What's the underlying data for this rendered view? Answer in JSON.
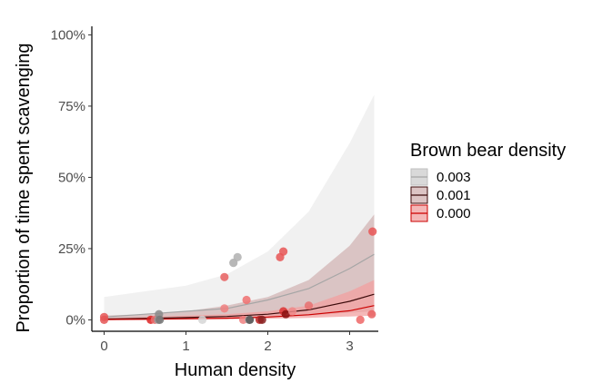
{
  "chart_data": {
    "type": "line",
    "title": "",
    "xlabel": "Human density",
    "ylabel": "Proportion of time spent scavenging",
    "xlim": [
      -0.15,
      3.35
    ],
    "ylim": [
      -0.04,
      1.03
    ],
    "x_ticks": [
      0,
      1,
      2,
      3
    ],
    "x_tick_labels": [
      "0",
      "1",
      "2",
      "3"
    ],
    "y_ticks": [
      0,
      0.25,
      0.5,
      0.75,
      1.0
    ],
    "y_tick_labels": [
      "0%",
      "25%",
      "50%",
      "75%",
      "100%"
    ],
    "grid": false,
    "legend": {
      "title": "Brown bear density",
      "placement": "right",
      "entries": [
        {
          "label": "0.003",
          "fill": "#d9d9d9",
          "line": "#a6a6a6",
          "border": "#bfbfbf"
        },
        {
          "label": "0.001",
          "fill": "#dcc4c4",
          "line": "#3b0a0a",
          "border": "#3b0a0a"
        },
        {
          "label": "0.000",
          "fill": "#f4b7b7",
          "line": "#cc0000",
          "border": "#cc0000"
        }
      ]
    },
    "series": [
      {
        "name": "0.003",
        "color": "#a6a6a6",
        "ribbon_color": "#ececec",
        "x": [
          0,
          0.5,
          1.0,
          1.5,
          2.0,
          2.5,
          3.0,
          3.3
        ],
        "fit": [
          0.01,
          0.02,
          0.03,
          0.04,
          0.07,
          0.11,
          0.18,
          0.23
        ],
        "lower": [
          0.0,
          0.0,
          0.01,
          0.01,
          0.02,
          0.04,
          0.07,
          0.09
        ],
        "upper": [
          0.08,
          0.1,
          0.12,
          0.16,
          0.24,
          0.38,
          0.62,
          0.79
        ]
      },
      {
        "name": "0.001",
        "color": "#3b0a0a",
        "ribbon_color": "#d2b4b4",
        "x": [
          0,
          0.5,
          1.0,
          1.5,
          2.0,
          2.5,
          3.0,
          3.3
        ],
        "fit": [
          0.003,
          0.005,
          0.008,
          0.012,
          0.02,
          0.035,
          0.065,
          0.09
        ],
        "lower": [
          0.0,
          0.0,
          0.002,
          0.005,
          0.01,
          0.015,
          0.025,
          0.03
        ],
        "upper": [
          0.015,
          0.02,
          0.03,
          0.05,
          0.08,
          0.14,
          0.26,
          0.37
        ]
      },
      {
        "name": "0.000",
        "color": "#cc0000",
        "ribbon_color": "#f2a0a0",
        "x": [
          0,
          0.5,
          1.0,
          1.5,
          2.0,
          2.5,
          3.0,
          3.3
        ],
        "fit": [
          0.001,
          0.002,
          0.004,
          0.006,
          0.01,
          0.018,
          0.032,
          0.05
        ],
        "lower": [
          0.0,
          0.0,
          0.001,
          0.002,
          0.004,
          0.007,
          0.012,
          0.015
        ],
        "upper": [
          0.006,
          0.01,
          0.015,
          0.02,
          0.03,
          0.05,
          0.1,
          0.14
        ]
      }
    ],
    "points": [
      {
        "x": 0.0,
        "y": 0.01,
        "color": "#e55555"
      },
      {
        "x": 0.0,
        "y": 0.0,
        "color": "#e55555"
      },
      {
        "x": 0.57,
        "y": 0.0,
        "color": "#dd2222"
      },
      {
        "x": 0.62,
        "y": 0.0,
        "color": "#e87070"
      },
      {
        "x": 0.66,
        "y": 0.0,
        "color": "#999999"
      },
      {
        "x": 0.67,
        "y": 0.02,
        "color": "#888888"
      },
      {
        "x": 0.68,
        "y": 0.0,
        "color": "#777777"
      },
      {
        "x": 1.2,
        "y": 0.0,
        "color": "#d6d6d6"
      },
      {
        "x": 1.47,
        "y": 0.15,
        "color": "#e86060"
      },
      {
        "x": 1.47,
        "y": 0.04,
        "color": "#ee8080"
      },
      {
        "x": 1.58,
        "y": 0.2,
        "color": "#aaaaaa"
      },
      {
        "x": 1.63,
        "y": 0.22,
        "color": "#b0b0b0"
      },
      {
        "x": 1.7,
        "y": 0.0,
        "color": "#f08080"
      },
      {
        "x": 1.74,
        "y": 0.07,
        "color": "#f07070"
      },
      {
        "x": 1.77,
        "y": 0.0,
        "color": "#aaaaaa"
      },
      {
        "x": 1.78,
        "y": 0.0,
        "color": "#555555"
      },
      {
        "x": 1.9,
        "y": 0.0,
        "color": "#bb2222"
      },
      {
        "x": 1.93,
        "y": 0.0,
        "color": "#882222"
      },
      {
        "x": 2.15,
        "y": 0.22,
        "color": "#e85555"
      },
      {
        "x": 2.19,
        "y": 0.24,
        "color": "#e85555"
      },
      {
        "x": 2.19,
        "y": 0.03,
        "color": "#dd3333"
      },
      {
        "x": 2.22,
        "y": 0.02,
        "color": "#881111"
      },
      {
        "x": 2.3,
        "y": 0.03,
        "color": "#ee8888"
      },
      {
        "x": 2.5,
        "y": 0.05,
        "color": "#e87070"
      },
      {
        "x": 3.13,
        "y": 0.0,
        "color": "#ee6666"
      },
      {
        "x": 3.27,
        "y": 0.02,
        "color": "#e86060"
      },
      {
        "x": 3.28,
        "y": 0.31,
        "color": "#e85555"
      }
    ]
  }
}
